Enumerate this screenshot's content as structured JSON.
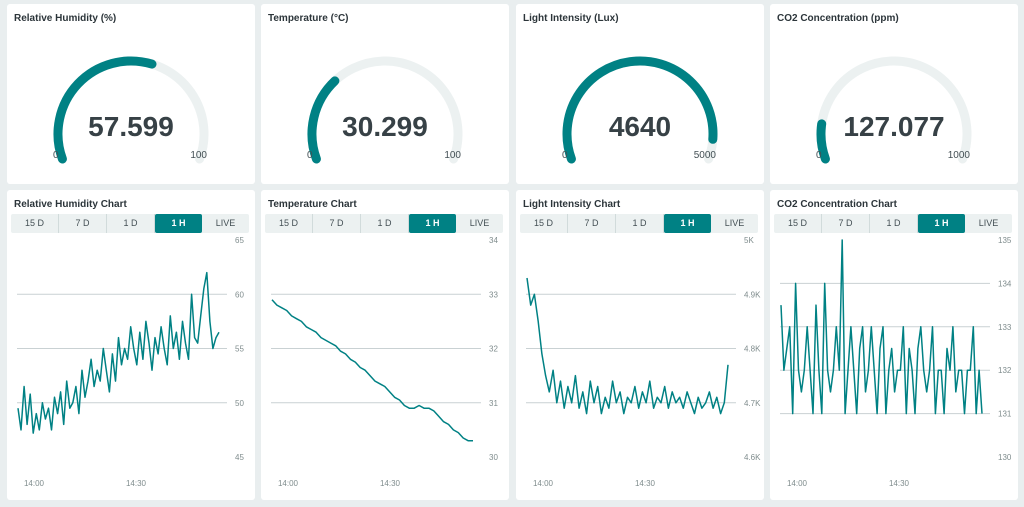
{
  "colors": {
    "accent": "#008184",
    "track": "#ecf1f1",
    "grid": "#c9d1d3",
    "background": "#e9eeef"
  },
  "gauges": [
    {
      "title": "Relative Humidity (%)",
      "value": "57.599",
      "numeric": 57.599,
      "min": 0,
      "max": 100,
      "min_label": "0",
      "max_label": "100"
    },
    {
      "title": "Temperature (°C)",
      "value": "30.299",
      "numeric": 30.299,
      "min": 0,
      "max": 100,
      "min_label": "0",
      "max_label": "100"
    },
    {
      "title": "Light Intensity (Lux)",
      "value": "4640",
      "numeric": 4640,
      "min": 0,
      "max": 5000,
      "min_label": "0",
      "max_label": "5000"
    },
    {
      "title": "CO2 Concentration (ppm)",
      "value": "127.077",
      "numeric": 127.077,
      "min": 0,
      "max": 1000,
      "min_label": "0",
      "max_label": "1000"
    }
  ],
  "tabs": [
    "15 D",
    "7 D",
    "1 D",
    "1 H",
    "LIVE"
  ],
  "active_tab": "1 H",
  "chart_data": [
    {
      "type": "line",
      "title": "Relative Humidity Chart",
      "x_ticks": [
        "14:00",
        "14:30"
      ],
      "y_ticks": [
        "45",
        "50",
        "55",
        "60",
        "65"
      ],
      "ylim": [
        45,
        65
      ],
      "series": [
        {
          "values": [
            49.5,
            47.5,
            51.5,
            48,
            50.8,
            47.2,
            49,
            47.5,
            50,
            48.5,
            49.5,
            47.5,
            50.5,
            49,
            51,
            48,
            52,
            49.5,
            50,
            51.5,
            49,
            53,
            50.5,
            52,
            54,
            51.5,
            53,
            52,
            55,
            53,
            51,
            54.5,
            52,
            56,
            53.5,
            55,
            54,
            57,
            55,
            53.5,
            56.5,
            54,
            57.5,
            55.5,
            53,
            56,
            54.5,
            57,
            55,
            53.5,
            58,
            55,
            56.5,
            54,
            57.5,
            55.5,
            54,
            60,
            56,
            55.5,
            58,
            60.5,
            62,
            57.5,
            55,
            56,
            56.5
          ]
        }
      ]
    },
    {
      "type": "line",
      "title": "Temperature Chart",
      "x_ticks": [
        "14:00",
        "14:30"
      ],
      "y_ticks": [
        "30",
        "31",
        "32",
        "33",
        "34"
      ],
      "ylim": [
        30,
        34
      ],
      "series": [
        {
          "values": [
            32.9,
            32.8,
            32.75,
            32.7,
            32.6,
            32.55,
            32.5,
            32.4,
            32.35,
            32.3,
            32.2,
            32.15,
            32.1,
            32.05,
            31.95,
            31.9,
            31.8,
            31.75,
            31.65,
            31.6,
            31.5,
            31.4,
            31.35,
            31.3,
            31.2,
            31.1,
            31.05,
            30.95,
            30.9,
            30.9,
            30.95,
            30.9,
            30.9,
            30.85,
            30.75,
            30.65,
            30.6,
            30.5,
            30.45,
            30.35,
            30.3,
            30.3
          ]
        }
      ]
    },
    {
      "type": "line",
      "title": "Light Intensity Chart",
      "x_ticks": [
        "14:00",
        "14:30"
      ],
      "y_ticks": [
        "4.6K",
        "4.7K",
        "4.8K",
        "4.9K",
        "5K"
      ],
      "ylim": [
        4600,
        5000
      ],
      "series": [
        {
          "values": [
            4930,
            4880,
            4900,
            4850,
            4790,
            4750,
            4720,
            4760,
            4700,
            4740,
            4690,
            4730,
            4700,
            4750,
            4690,
            4720,
            4680,
            4740,
            4700,
            4730,
            4680,
            4710,
            4690,
            4740,
            4700,
            4720,
            4680,
            4710,
            4700,
            4730,
            4690,
            4720,
            4700,
            4740,
            4690,
            4710,
            4700,
            4730,
            4690,
            4720,
            4700,
            4710,
            4690,
            4720,
            4700,
            4680,
            4710,
            4690,
            4700,
            4720,
            4690,
            4710,
            4680,
            4700,
            4770
          ]
        }
      ]
    },
    {
      "type": "line",
      "title": "CO2 Concentration Chart",
      "x_ticks": [
        "14:00",
        "14:30"
      ],
      "y_ticks": [
        "130",
        "131",
        "132",
        "133",
        "134",
        "135"
      ],
      "ylim": [
        130,
        135
      ],
      "series": [
        {
          "values": [
            133.5,
            132,
            132.5,
            133,
            131,
            134,
            132,
            131.5,
            132,
            133,
            132,
            131,
            133.5,
            132,
            131,
            134,
            132,
            131.5,
            132,
            133,
            132,
            135,
            131,
            132,
            133,
            132,
            131,
            132.5,
            133,
            131.5,
            132,
            133,
            132,
            131,
            132.5,
            133,
            131,
            132,
            132.5,
            131.5,
            132,
            132,
            133,
            131,
            132.5,
            132,
            131,
            132.5,
            133,
            132,
            131.5,
            132,
            133,
            131,
            132,
            132,
            131,
            132.5,
            132,
            133,
            131.5,
            132,
            132,
            131,
            132,
            132,
            133,
            131,
            132,
            131
          ]
        }
      ]
    }
  ]
}
